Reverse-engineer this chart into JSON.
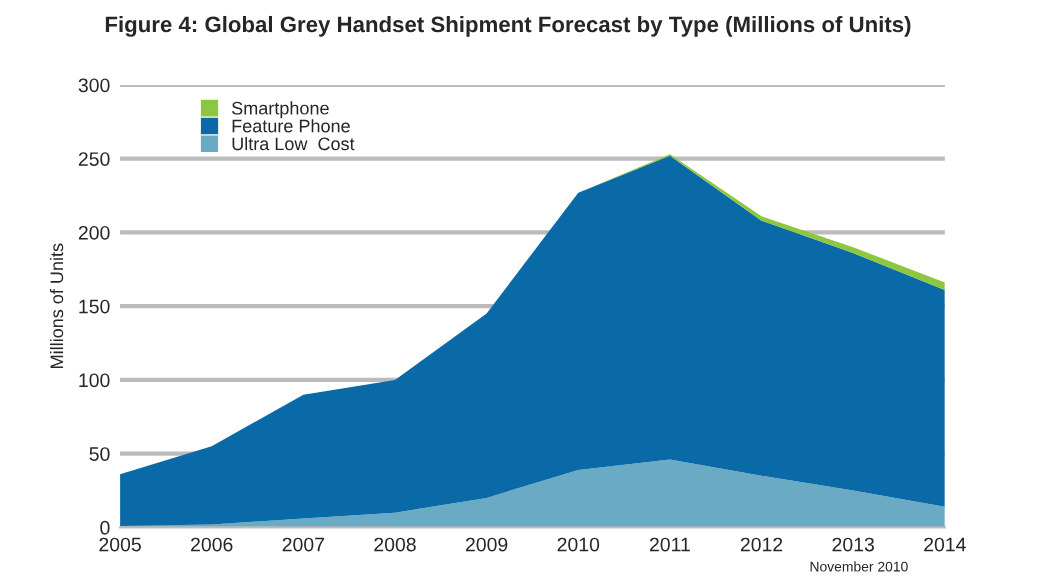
{
  "chart_data": {
    "type": "area",
    "stacked": true,
    "title": "Figure 4: Global Grey Handset Shipment Forecast by Type (Millions of Units)",
    "ylabel": "Millions of Units",
    "categories": [
      "2005",
      "2006",
      "2007",
      "2008",
      "2009",
      "2010",
      "2011",
      "2012",
      "2013",
      "2014"
    ],
    "series": [
      {
        "name": "Ultra Low  Cost",
        "color": "#6aaac4",
        "values": [
          1,
          2,
          6,
          10,
          20,
          39,
          46,
          35,
          25,
          14
        ]
      },
      {
        "name": "Feature Phone",
        "color": "#0a6aa8",
        "values": [
          35,
          53,
          84,
          90,
          125,
          188,
          206,
          173,
          161,
          147
        ]
      },
      {
        "name": "Smartphone",
        "color": "#8dc63f",
        "values": [
          0,
          0,
          0,
          0,
          0,
          0,
          1,
          3,
          4,
          5
        ]
      }
    ],
    "ylim": [
      0,
      300
    ],
    "yticks": [
      0,
      50,
      100,
      150,
      200,
      250,
      300
    ],
    "grid": "y",
    "legend": "top left",
    "annotations": [
      "November 2010"
    ]
  }
}
